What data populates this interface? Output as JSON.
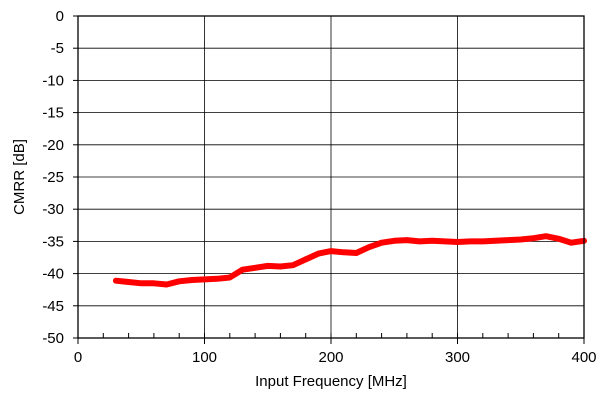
{
  "chart_data": {
    "type": "line",
    "title": "",
    "xlabel": "Input Frequency [MHz]",
    "ylabel": "CMRR [dB]",
    "xlim": [
      0,
      400
    ],
    "ylim": [
      -50,
      0
    ],
    "x_ticks": [
      0,
      100,
      200,
      300,
      400
    ],
    "y_ticks": [
      0,
      -5,
      -10,
      -15,
      -20,
      -25,
      -30,
      -35,
      -40,
      -45,
      -50
    ],
    "x_tick_labels": [
      "0",
      "100",
      "200",
      "300",
      "400"
    ],
    "y_tick_labels": [
      "0",
      "-5",
      "-10",
      "-15",
      "-20",
      "-25",
      "-30",
      "-35",
      "-40",
      "-45",
      "-50"
    ],
    "x_minor_step": 20,
    "grid": true,
    "series": [
      {
        "color": "#ff0000",
        "x": [
          30,
          40,
          50,
          60,
          70,
          80,
          90,
          100,
          110,
          120,
          130,
          140,
          150,
          160,
          170,
          180,
          190,
          200,
          210,
          220,
          230,
          240,
          250,
          260,
          270,
          280,
          290,
          300,
          310,
          320,
          330,
          340,
          350,
          360,
          370,
          380,
          390,
          400
        ],
        "y": [
          -41.1,
          -41.3,
          -41.5,
          -41.5,
          -41.7,
          -41.2,
          -41.0,
          -40.9,
          -40.8,
          -40.6,
          -39.4,
          -39.1,
          -38.8,
          -38.9,
          -38.7,
          -37.8,
          -36.9,
          -36.5,
          -36.7,
          -36.8,
          -35.9,
          -35.2,
          -34.9,
          -34.8,
          -35.0,
          -34.9,
          -35.0,
          -35.1,
          -35.0,
          -35.0,
          -34.9,
          -34.8,
          -34.7,
          -34.5,
          -34.2,
          -34.6,
          -35.2,
          -34.9
        ]
      }
    ]
  }
}
